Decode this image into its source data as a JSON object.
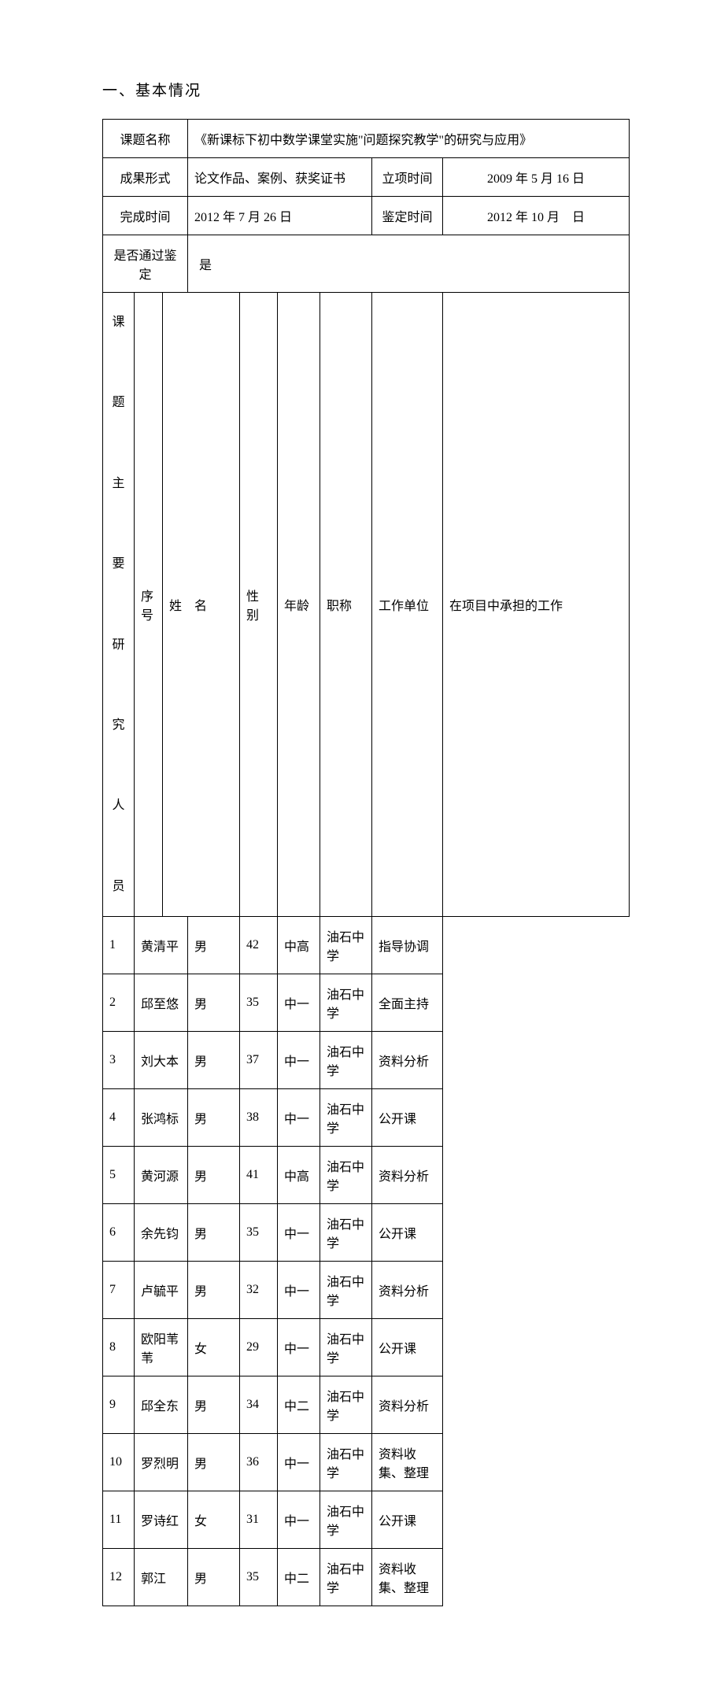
{
  "section_title": "一、基本情况",
  "labels": {
    "topic_name": "课题名称",
    "result_form": "成果形式",
    "approval_date": "立项时间",
    "complete_date": "完成时间",
    "evaluate_date": "鉴定时间",
    "passed_label": "是否通过鉴定",
    "vertical_label": "课\n\n题\n\n主\n\n要\n\n研\n\n究\n\n人\n\n员"
  },
  "values": {
    "topic_name": "《新课标下初中数学课堂实施\"问题探究教学\"的研究与应用》",
    "result_form": "论文作品、案例、获奖证书",
    "approval_date": "2009 年 5 月 16 日",
    "complete_date": "2012 年 7 月 26 日",
    "evaluate_date": "2012 年 10 月　日",
    "passed": "是"
  },
  "team_headers": {
    "idx": "序号",
    "name": "姓　名",
    "gender": "性别",
    "age": "年龄",
    "rank": "职称",
    "unit": "工作单位",
    "role": "在项目中承担的工作"
  },
  "team": [
    {
      "idx": "1",
      "name": "黄清平",
      "gender": "男",
      "age": "42",
      "rank": "中高",
      "unit": "油石中学",
      "role": "指导协调"
    },
    {
      "idx": "2",
      "name": "邱至悠",
      "gender": "男",
      "age": "35",
      "rank": "中一",
      "unit": "油石中学",
      "role": "全面主持"
    },
    {
      "idx": "3",
      "name": "刘大本",
      "gender": "男",
      "age": "37",
      "rank": "中一",
      "unit": "油石中学",
      "role": "资料分析"
    },
    {
      "idx": "4",
      "name": "张鸿标",
      "gender": "男",
      "age": "38",
      "rank": "中一",
      "unit": "油石中学",
      "role": "公开课"
    },
    {
      "idx": "5",
      "name": "黄河源",
      "gender": "男",
      "age": "41",
      "rank": "中高",
      "unit": "油石中学",
      "role": "资料分析"
    },
    {
      "idx": "6",
      "name": "余先钧",
      "gender": "男",
      "age": "35",
      "rank": "中一",
      "unit": "油石中学",
      "role": "公开课"
    },
    {
      "idx": "7",
      "name": "卢毓平",
      "gender": "男",
      "age": "32",
      "rank": "中一",
      "unit": "油石中学",
      "role": "资料分析"
    },
    {
      "idx": "8",
      "name": "欧阳苇苇",
      "gender": "女",
      "age": "29",
      "rank": "中一",
      "unit": "油石中学",
      "role": "公开课"
    },
    {
      "idx": "9",
      "name": "邱全东",
      "gender": "男",
      "age": "34",
      "rank": "中二",
      "unit": "油石中学",
      "role": "资料分析"
    },
    {
      "idx": "10",
      "name": "罗烈明",
      "gender": "男",
      "age": "36",
      "rank": "中一",
      "unit": "油石中学",
      "role": "资料收集、整理"
    },
    {
      "idx": "11",
      "name": "罗诗红",
      "gender": "女",
      "age": "31",
      "rank": "中一",
      "unit": "油石中学",
      "role": "公开课"
    },
    {
      "idx": "12",
      "name": "郭江",
      "gender": "男",
      "age": "35",
      "rank": "中二",
      "unit": "油石中学",
      "role": "资料收集、整理"
    }
  ]
}
